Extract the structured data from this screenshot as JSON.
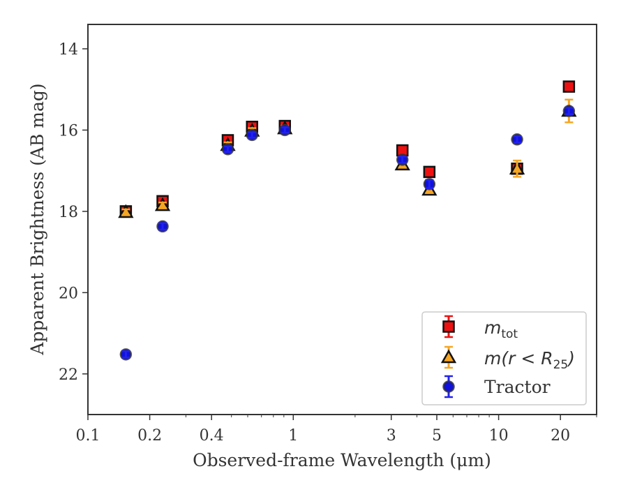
{
  "chart_data": {
    "type": "scatter",
    "title": "",
    "xlabel": "Observed-frame Wavelength (μm)",
    "ylabel": "Apparent Brightness (AB mag)",
    "xscale": "log",
    "xlim": [
      0.1,
      30
    ],
    "ylim": [
      23,
      13.4
    ],
    "y_inverted": true,
    "grid": false,
    "legend_position": "lower-right",
    "x_ticks": [
      0.1,
      0.2,
      0.4,
      1,
      3,
      5,
      10,
      20
    ],
    "x_tick_labels": [
      "0.1",
      "0.2",
      "0.4",
      "1",
      "3",
      "5",
      "10",
      "20"
    ],
    "y_ticks": [
      14,
      16,
      18,
      20,
      22
    ],
    "y_tick_labels": [
      "14",
      "16",
      "18",
      "20",
      "22"
    ],
    "series": [
      {
        "label_parts": {
          "main": "m",
          "sub": "tot"
        },
        "marker": "square",
        "color": "#ee1111",
        "edge_color": "#111111",
        "error_color": "#ee1111",
        "points": [
          {
            "x": 0.153,
            "y": 18.0
          },
          {
            "x": 0.231,
            "y": 17.75
          },
          {
            "x": 0.48,
            "y": 16.25
          },
          {
            "x": 0.63,
            "y": 15.92
          },
          {
            "x": 0.91,
            "y": 15.9
          },
          {
            "x": 3.4,
            "y": 16.5
          },
          {
            "x": 4.6,
            "y": 17.03
          },
          {
            "x": 12.3,
            "y": 16.95
          },
          {
            "x": 22.0,
            "y": 14.93
          }
        ]
      },
      {
        "label_parts": {
          "main": "m(r < R",
          "sub": "25",
          "tail": ")"
        },
        "marker": "triangle",
        "color": "#f5a623",
        "edge_color": "#111111",
        "error_color": "#f5a623",
        "points": [
          {
            "x": 0.153,
            "y": 18.02,
            "err": 0.05
          },
          {
            "x": 0.231,
            "y": 17.85,
            "err": 0.05
          },
          {
            "x": 0.48,
            "y": 16.37,
            "err": 0.05
          },
          {
            "x": 0.63,
            "y": 16.02,
            "err": 0.05
          },
          {
            "x": 0.91,
            "y": 15.96,
            "err": 0.05
          },
          {
            "x": 3.4,
            "y": 16.85,
            "err": 0.07
          },
          {
            "x": 4.6,
            "y": 17.47,
            "err": 0.08
          },
          {
            "x": 12.3,
            "y": 16.95,
            "err": 0.2
          },
          {
            "x": 22.0,
            "y": 15.53,
            "err": 0.28
          }
        ]
      },
      {
        "name": "Tractor",
        "marker": "circle",
        "color": "#1111dd",
        "edge_color": "#333333",
        "error_color": "#2222ee",
        "points": [
          {
            "x": 0.153,
            "y": 21.52,
            "err": 0.08
          },
          {
            "x": 0.231,
            "y": 18.37,
            "err": 0.08
          },
          {
            "x": 0.48,
            "y": 16.47,
            "err": 0.05
          },
          {
            "x": 0.63,
            "y": 16.12,
            "err": 0.05
          },
          {
            "x": 0.91,
            "y": 16.0,
            "err": 0.05
          },
          {
            "x": 3.4,
            "y": 16.73,
            "err": 0.08
          },
          {
            "x": 4.6,
            "y": 17.33,
            "err": 0.1
          },
          {
            "x": 12.3,
            "y": 16.23,
            "err": 0.08
          },
          {
            "x": 22.0,
            "y": 15.53,
            "err": 0.08
          }
        ]
      }
    ]
  }
}
